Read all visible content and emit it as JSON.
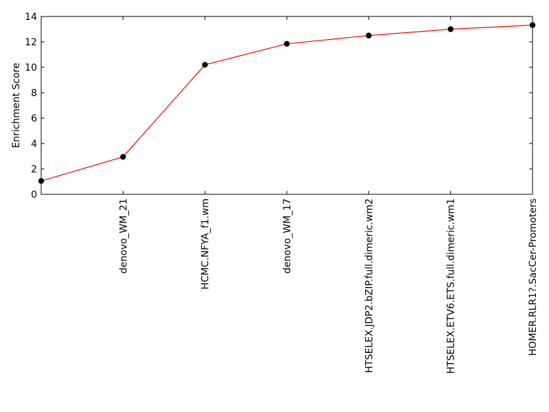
{
  "chart_data": {
    "type": "line",
    "title": "",
    "xlabel": "",
    "ylabel": "Enrichment Score",
    "ylim": [
      0,
      14
    ],
    "yticks": [
      0,
      2,
      4,
      6,
      8,
      10,
      12,
      14
    ],
    "grid": false,
    "legend": "none",
    "categories": [
      "",
      "denovo_WM_21",
      "HCMC.NFYA_f1.wm",
      "denovo_WM_17",
      "HTSELEX.JDP2.bZIP.full.dimeric.wm2",
      "HTSELEX.ETV6.ETS.full.dimeric.wm1",
      "HOMER.RLR1?.SacCer-Promoters"
    ],
    "values": [
      1.05,
      2.95,
      10.2,
      11.85,
      12.5,
      13.0,
      13.32
    ],
    "colors": {
      "line": "#ff0000",
      "marker": "#000000",
      "axis": "#000000"
    }
  }
}
